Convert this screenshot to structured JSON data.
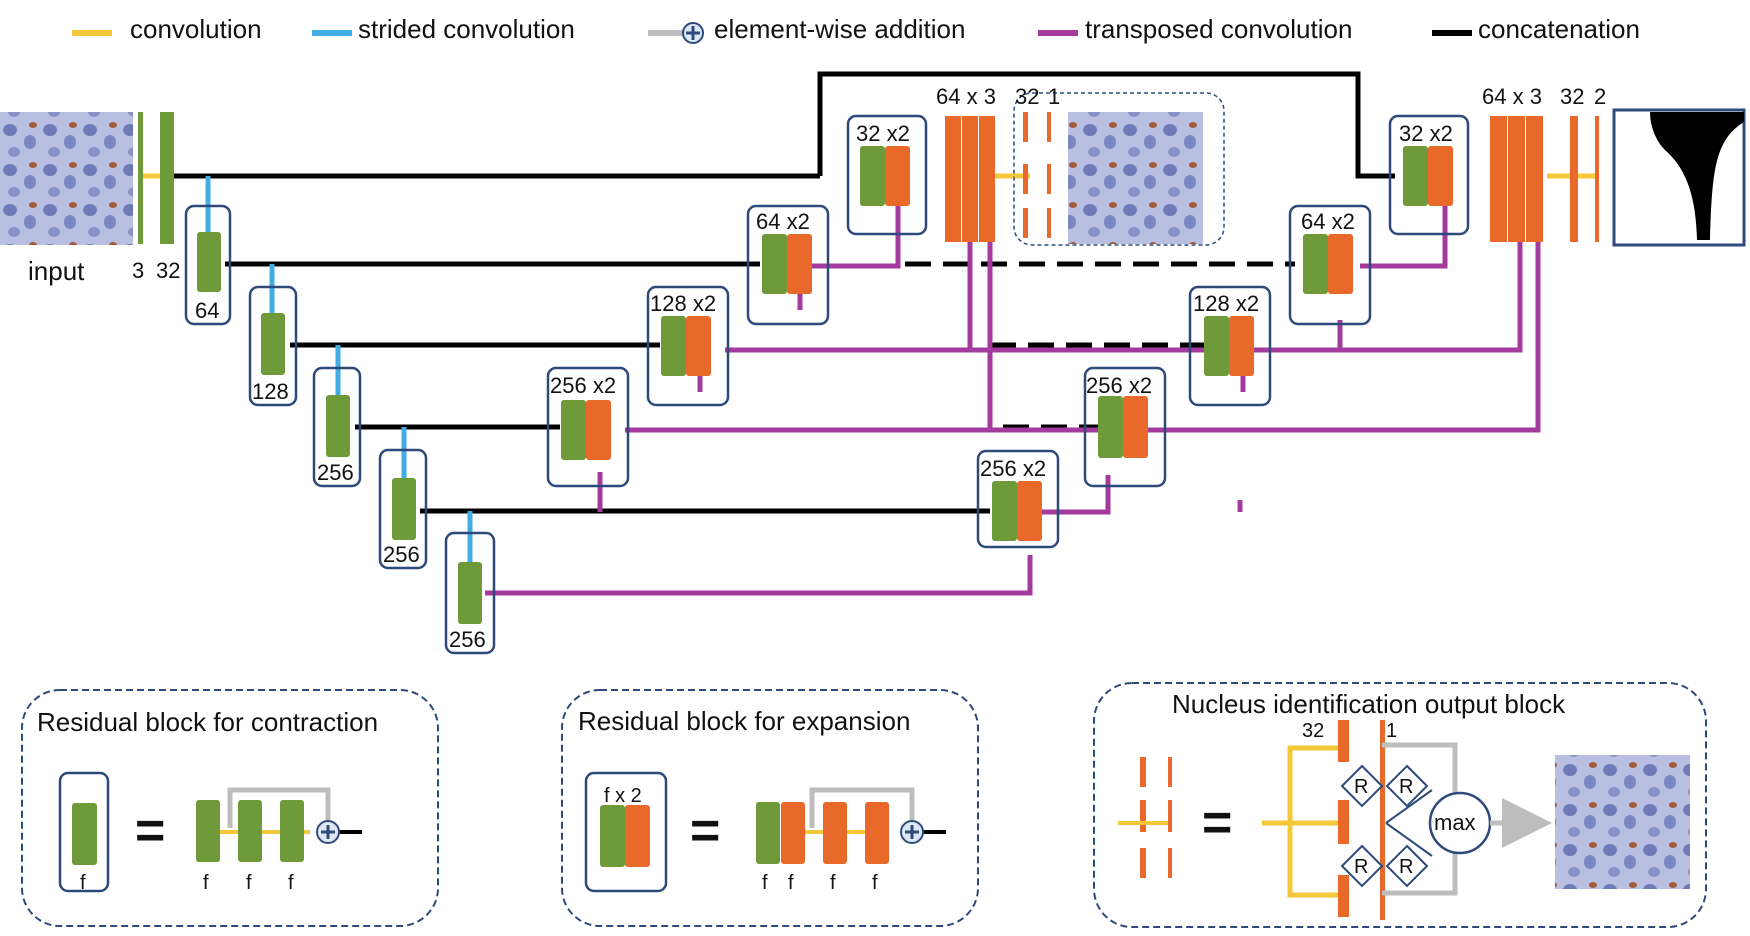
{
  "legend": {
    "convolution": "convolution",
    "strided": "strided convolution",
    "addition": "element-wise addition",
    "transposed": "transposed convolution",
    "concat": "concatenation"
  },
  "colors": {
    "convolution": "#f5c83a",
    "strided": "#41aee3",
    "addition": "#bdbdbd",
    "transposed": "#a33b9c",
    "concat": "#000000",
    "green": "#6e9a3a",
    "orange": "#e8692a",
    "frame": "#2e4a7a"
  },
  "input": {
    "label": "input",
    "ch3": "3",
    "ch32": "32"
  },
  "encoder": {
    "f64": "64",
    "f128": "128",
    "f256a": "256",
    "f256b": "256",
    "f256c": "256",
    "f256d": "256"
  },
  "decoder": {
    "d256a": "256 x2",
    "d256b": "256 x2",
    "d128": "128 x2",
    "d64": "64 x2",
    "d32": "32 x2",
    "b256b": "256 x2",
    "b128": "128 x2",
    "b64": "64 x2",
    "b32": "32 x2"
  },
  "heads": {
    "top": {
      "a": "64 x 3",
      "b": "32",
      "c": "1"
    },
    "right": {
      "a": "64 x 3",
      "b": "32",
      "c": "2"
    }
  },
  "panels": {
    "contraction": {
      "title": "Residual block for contraction",
      "f": "f",
      "eq": "="
    },
    "expansion": {
      "title": "Residual block for expansion",
      "fx2": "f x 2",
      "f": "f",
      "eq": "="
    },
    "nucleus": {
      "title": "Nucleus identification output block",
      "n32": "32",
      "n1": "1",
      "r": "R",
      "max": "max",
      "eq": "="
    }
  }
}
